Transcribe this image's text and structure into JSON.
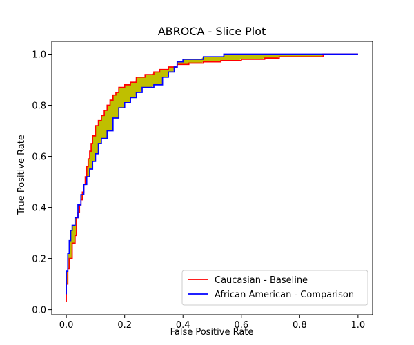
{
  "chart_data": {
    "type": "line",
    "title": "ABROCA - Slice Plot",
    "xlabel": "False Positive Rate",
    "ylabel": "True Positive Rate",
    "xlim": [
      -0.05,
      1.05
    ],
    "ylim": [
      -0.02,
      1.05
    ],
    "xticks": [
      "0.0",
      "0.2",
      "0.4",
      "0.6",
      "0.8",
      "1.0"
    ],
    "yticks": [
      "0.0",
      "0.2",
      "0.4",
      "0.6",
      "0.8",
      "1.0"
    ],
    "grid": false,
    "legend_position": "lower-right",
    "fill_color": "#bfbf00",
    "series": [
      {
        "name": "Caucasian - Baseline",
        "color": "#ff0000",
        "x": [
          0.0,
          0.0,
          0.005,
          0.005,
          0.01,
          0.01,
          0.02,
          0.02,
          0.03,
          0.03,
          0.035,
          0.035,
          0.04,
          0.04,
          0.045,
          0.045,
          0.05,
          0.05,
          0.055,
          0.055,
          0.06,
          0.06,
          0.065,
          0.065,
          0.07,
          0.07,
          0.075,
          0.075,
          0.08,
          0.08,
          0.085,
          0.085,
          0.09,
          0.09,
          0.1,
          0.1,
          0.11,
          0.11,
          0.12,
          0.12,
          0.13,
          0.13,
          0.14,
          0.14,
          0.15,
          0.15,
          0.16,
          0.16,
          0.17,
          0.17,
          0.18,
          0.18,
          0.2,
          0.2,
          0.22,
          0.22,
          0.24,
          0.24,
          0.27,
          0.27,
          0.3,
          0.3,
          0.32,
          0.32,
          0.35,
          0.35,
          0.38,
          0.38,
          0.42,
          0.42,
          0.47,
          0.47,
          0.53,
          0.53,
          0.6,
          0.6,
          0.68,
          0.68,
          0.73,
          0.73,
          0.88,
          0.88,
          1.0
        ],
        "y": [
          0.03,
          0.1,
          0.1,
          0.16,
          0.16,
          0.2,
          0.2,
          0.26,
          0.26,
          0.29,
          0.29,
          0.36,
          0.36,
          0.38,
          0.38,
          0.41,
          0.41,
          0.43,
          0.43,
          0.46,
          0.46,
          0.49,
          0.49,
          0.52,
          0.52,
          0.56,
          0.56,
          0.59,
          0.59,
          0.62,
          0.62,
          0.65,
          0.65,
          0.68,
          0.68,
          0.72,
          0.72,
          0.74,
          0.74,
          0.76,
          0.76,
          0.78,
          0.78,
          0.8,
          0.8,
          0.82,
          0.82,
          0.84,
          0.84,
          0.85,
          0.85,
          0.87,
          0.87,
          0.88,
          0.88,
          0.89,
          0.89,
          0.91,
          0.91,
          0.92,
          0.92,
          0.93,
          0.93,
          0.94,
          0.94,
          0.95,
          0.95,
          0.96,
          0.96,
          0.965,
          0.965,
          0.97,
          0.97,
          0.975,
          0.975,
          0.98,
          0.98,
          0.985,
          0.985,
          0.99,
          0.99,
          1.0,
          1.0
        ]
      },
      {
        "name": "African American - Comparison",
        "color": "#0000ff",
        "x": [
          0.0,
          0.0,
          0.005,
          0.005,
          0.01,
          0.01,
          0.015,
          0.015,
          0.02,
          0.02,
          0.03,
          0.03,
          0.04,
          0.04,
          0.05,
          0.05,
          0.06,
          0.06,
          0.07,
          0.07,
          0.08,
          0.08,
          0.09,
          0.09,
          0.1,
          0.1,
          0.11,
          0.11,
          0.12,
          0.12,
          0.14,
          0.14,
          0.16,
          0.16,
          0.18,
          0.18,
          0.2,
          0.2,
          0.22,
          0.22,
          0.24,
          0.24,
          0.26,
          0.26,
          0.3,
          0.3,
          0.33,
          0.33,
          0.35,
          0.35,
          0.37,
          0.37,
          0.38,
          0.38,
          0.4,
          0.4,
          0.47,
          0.47,
          0.54,
          0.54,
          0.73,
          0.73,
          0.85,
          0.85,
          1.0
        ],
        "y": [
          0.06,
          0.15,
          0.15,
          0.22,
          0.22,
          0.27,
          0.27,
          0.31,
          0.31,
          0.33,
          0.33,
          0.36,
          0.36,
          0.41,
          0.41,
          0.45,
          0.45,
          0.49,
          0.49,
          0.52,
          0.52,
          0.55,
          0.55,
          0.58,
          0.58,
          0.61,
          0.61,
          0.65,
          0.65,
          0.67,
          0.67,
          0.7,
          0.7,
          0.75,
          0.75,
          0.79,
          0.79,
          0.81,
          0.81,
          0.83,
          0.83,
          0.85,
          0.85,
          0.87,
          0.87,
          0.88,
          0.88,
          0.91,
          0.91,
          0.93,
          0.93,
          0.95,
          0.95,
          0.97,
          0.97,
          0.98,
          0.98,
          0.99,
          0.99,
          1.0,
          1.0,
          1.0,
          1.0,
          1.0,
          1.0
        ]
      }
    ]
  }
}
